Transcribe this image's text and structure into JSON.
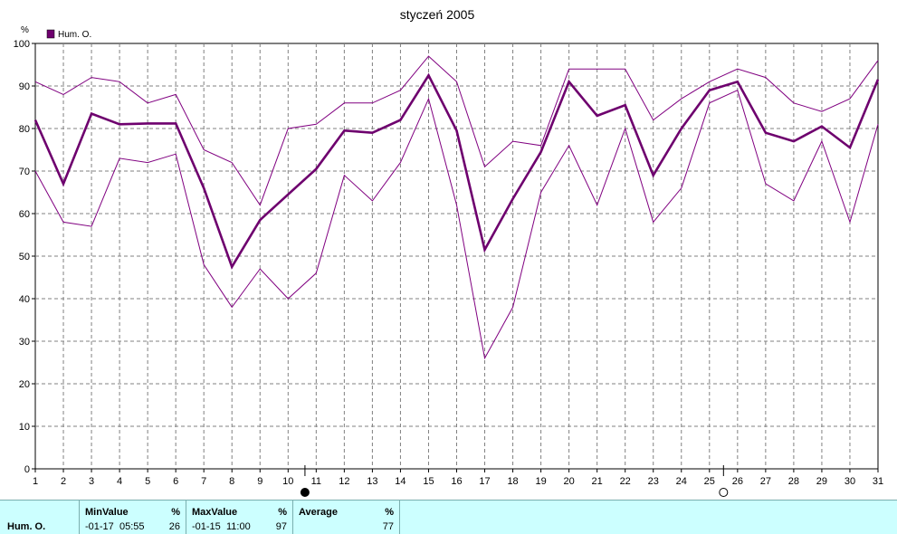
{
  "chart_data": {
    "type": "line",
    "title": "styczeń 2005",
    "ylabel": "%",
    "legend": {
      "placement": "top-left",
      "entries": [
        "Hum. O."
      ]
    },
    "x": [
      1,
      2,
      3,
      4,
      5,
      6,
      7,
      8,
      9,
      10,
      11,
      12,
      13,
      14,
      15,
      16,
      17,
      18,
      19,
      20,
      21,
      22,
      23,
      24,
      25,
      26,
      27,
      28,
      29,
      30,
      31
    ],
    "xlim": [
      1,
      31
    ],
    "ylim": [
      0,
      100
    ],
    "yticks": [
      0,
      10,
      20,
      30,
      40,
      50,
      60,
      70,
      80,
      90,
      100
    ],
    "grid": true,
    "series": [
      {
        "name": "Hum. O.",
        "role": "average",
        "color": "#6e006e",
        "values": [
          82,
          67,
          83.5,
          81,
          81.2,
          81.2,
          66,
          47.5,
          58.5,
          64.5,
          70.5,
          79.5,
          79,
          82,
          92.5,
          79.5,
          51.5,
          63.5,
          74.5,
          91,
          83,
          85.5,
          69,
          80,
          89,
          91,
          79,
          77,
          80.5,
          75.5,
          91.5
        ]
      },
      {
        "role": "max",
        "color": "#800080",
        "values": [
          91,
          88,
          92,
          91,
          86,
          88,
          75,
          72,
          62,
          80,
          81,
          86,
          86,
          89,
          97,
          91,
          71,
          77,
          76,
          94,
          94,
          94,
          82,
          87,
          91,
          94,
          92,
          86,
          84,
          87,
          96
        ]
      },
      {
        "role": "min",
        "color": "#800080",
        "values": [
          70,
          58,
          57,
          73,
          72,
          74,
          48,
          38,
          47,
          40,
          46,
          69,
          63,
          72,
          87,
          62,
          26,
          38,
          65,
          76,
          62,
          80,
          58,
          66,
          86,
          89,
          67,
          63,
          77,
          58,
          81
        ]
      }
    ],
    "markers": [
      {
        "name": "full-moon",
        "x": 10.6
      },
      {
        "name": "new-moon",
        "x": 25.5
      }
    ]
  },
  "summary": {
    "row_label": "Hum. O.",
    "min": {
      "header": "MinValue",
      "unit": "%",
      "date": "-01-17",
      "time": "05:55",
      "value": "26"
    },
    "max": {
      "header": "MaxValue",
      "unit": "%",
      "date": "-01-15",
      "time": "11:00",
      "value": "97"
    },
    "avg": {
      "header": "Average",
      "unit": "%",
      "value": "77"
    }
  },
  "colors": {
    "panel_bg": "#ccffff",
    "series": "#6e006e",
    "grid": "#808080"
  }
}
